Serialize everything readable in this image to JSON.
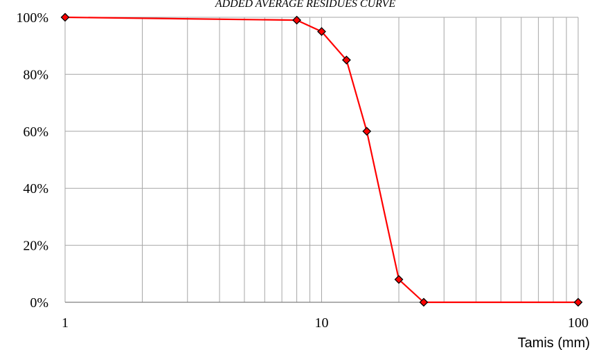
{
  "chart_data": {
    "type": "line",
    "title": "ADDED AVERAGE RESIDUES CURVE",
    "xlabel": "Tamis (mm)",
    "ylabel": "",
    "x_scale": "log",
    "xlim": [
      1,
      100
    ],
    "ylim": [
      0,
      100
    ],
    "x_tick_labels": [
      "1",
      "10",
      "100"
    ],
    "y_tick_labels": [
      "0%",
      "20%",
      "40%",
      "60%",
      "80%",
      "100%"
    ],
    "grid": true,
    "legend": "none",
    "series": [
      {
        "color": "#ff0000",
        "marker": "diamond",
        "x": [
          1,
          8,
          10,
          12.5,
          15,
          20,
          25,
          100
        ],
        "y": [
          100,
          99,
          95,
          85,
          60,
          8,
          0,
          0
        ]
      }
    ]
  }
}
